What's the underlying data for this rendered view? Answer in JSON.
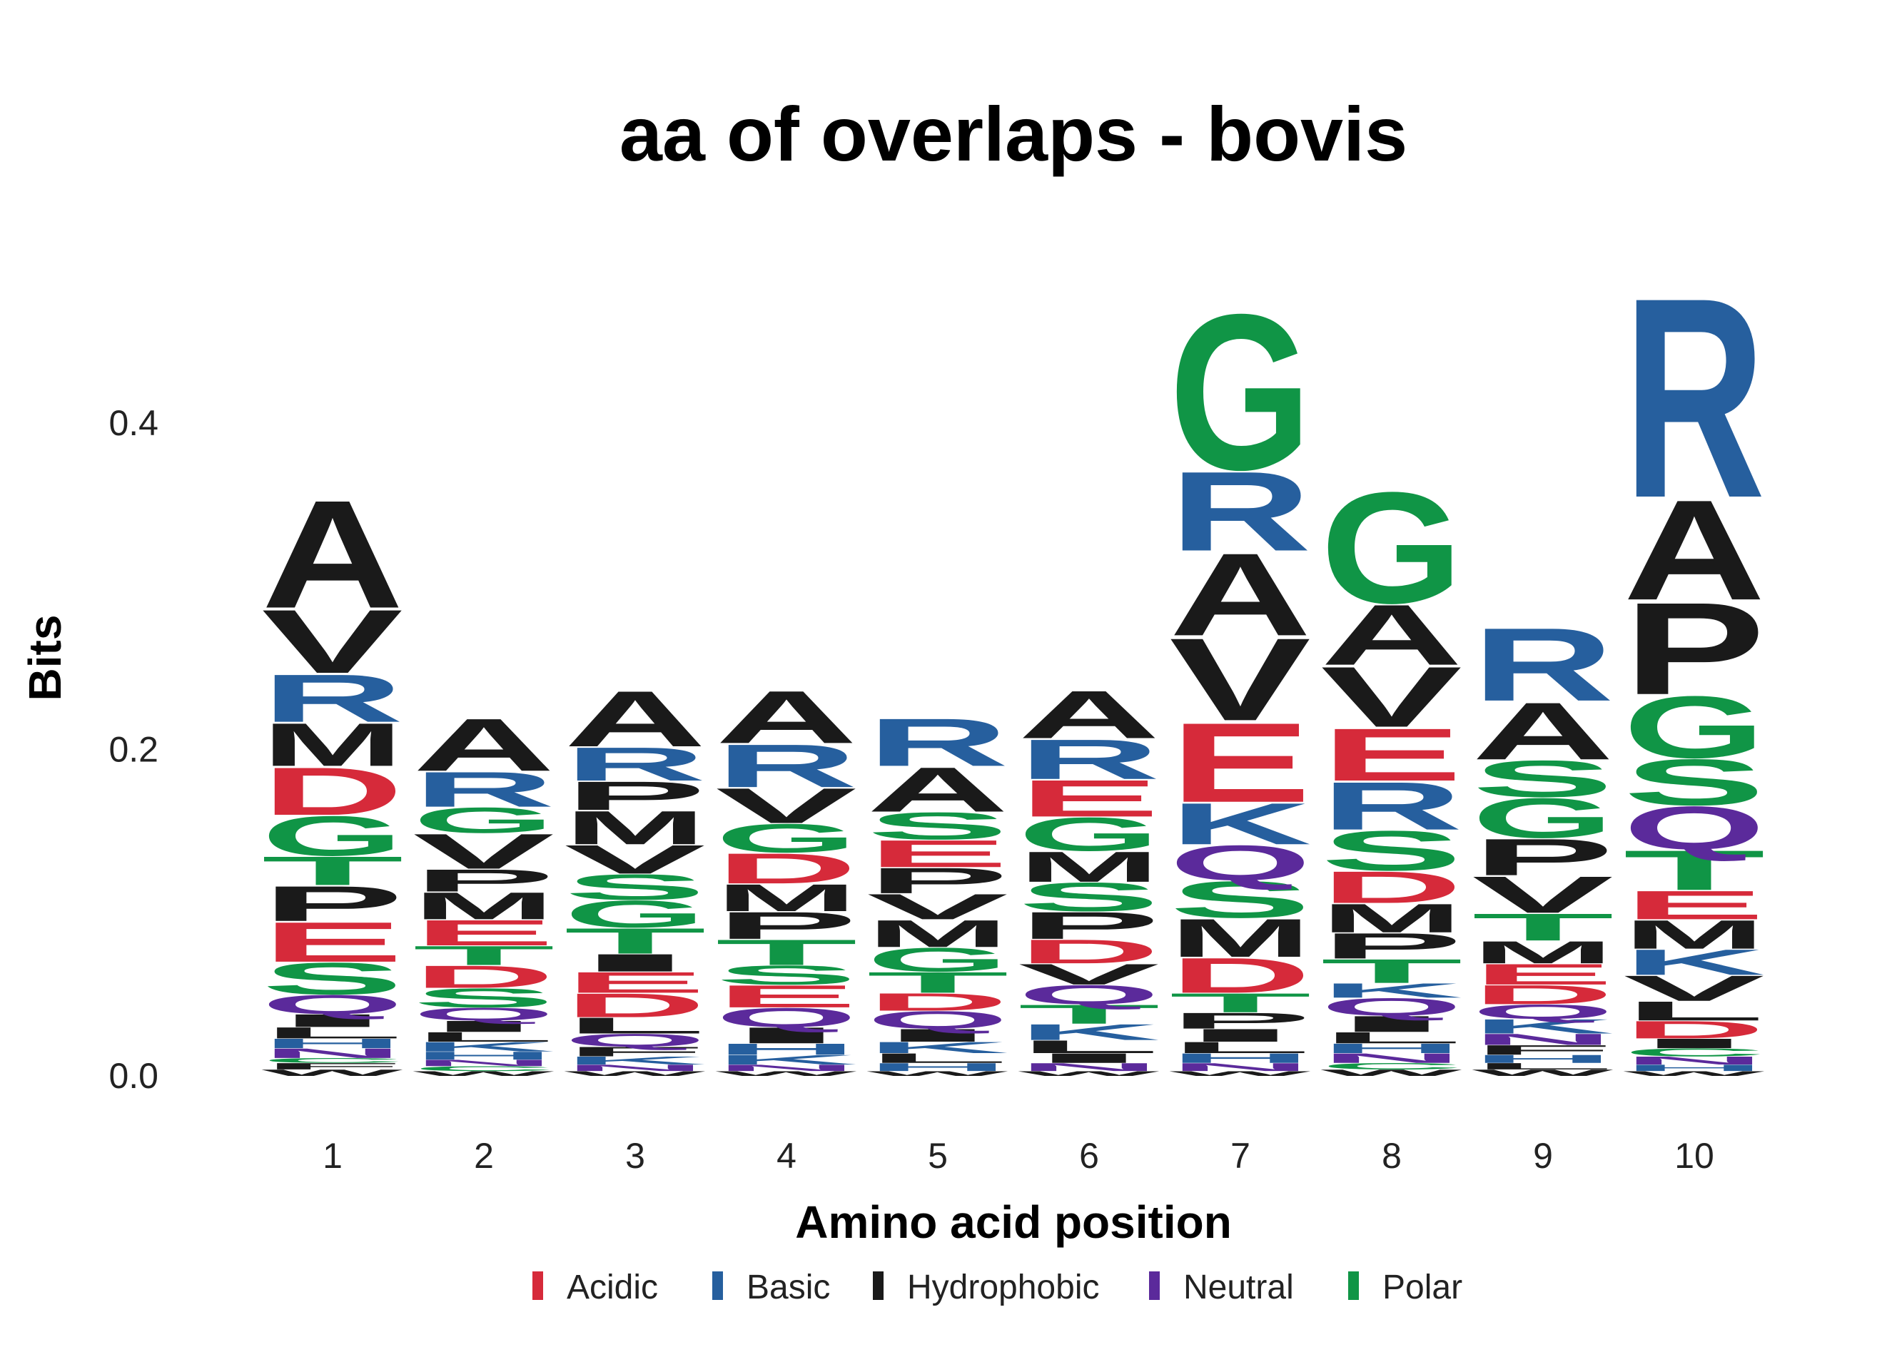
{
  "chart_data": {
    "type": "sequence-logo",
    "title": "aa of overlaps - bovis",
    "xlabel": "Amino acid position",
    "ylabel": "Bits",
    "ylim": [
      0,
      0.55
    ],
    "yticks": [
      "0.0",
      "0.2",
      "0.4"
    ],
    "ytick_values": [
      0.0,
      0.2,
      0.4
    ],
    "positions": [
      "1",
      "2",
      "3",
      "4",
      "5",
      "6",
      "7",
      "8",
      "9",
      "10"
    ],
    "colors": {
      "Acidic": "#d62a3a",
      "Basic": "#265f9e",
      "Hydrophobic": "#1a1a1a",
      "Neutral": "#5b2a9b",
      "Polar": "#109546"
    },
    "legend": {
      "position": "bottom",
      "entries": [
        "Acidic",
        "Basic",
        "Hydrophobic",
        "Neutral",
        "Polar"
      ]
    },
    "residue_class": {
      "D": "Acidic",
      "E": "Acidic",
      "R": "Basic",
      "K": "Basic",
      "H": "Basic",
      "A": "Hydrophobic",
      "V": "Hydrophobic",
      "M": "Hydrophobic",
      "P": "Hydrophobic",
      "L": "Hydrophobic",
      "I": "Hydrophobic",
      "F": "Hydrophobic",
      "W": "Hydrophobic",
      "Q": "Neutral",
      "N": "Neutral",
      "G": "Polar",
      "S": "Polar",
      "T": "Polar",
      "Y": "Polar",
      "C": "Polar"
    },
    "columns": [
      {
        "position": "1",
        "stack": [
          [
            "W",
            0.004
          ],
          [
            "F",
            0.004
          ],
          [
            "C",
            0.003
          ],
          [
            "N",
            0.006
          ],
          [
            "H",
            0.006
          ],
          [
            "L",
            0.007
          ],
          [
            "I",
            0.008
          ],
          [
            "Q",
            0.012
          ],
          [
            "S",
            0.02
          ],
          [
            "E",
            0.025
          ],
          [
            "P",
            0.022
          ],
          [
            "T",
            0.018
          ],
          [
            "G",
            0.025
          ],
          [
            "D",
            0.03
          ],
          [
            "M",
            0.027
          ],
          [
            "R",
            0.03
          ],
          [
            "V",
            0.04
          ],
          [
            "A",
            0.068
          ]
        ]
      },
      {
        "position": "2",
        "stack": [
          [
            "W",
            0.003
          ],
          [
            "C",
            0.003
          ],
          [
            "N",
            0.004
          ],
          [
            "H",
            0.005
          ],
          [
            "K",
            0.006
          ],
          [
            "L",
            0.006
          ],
          [
            "I",
            0.007
          ],
          [
            "Q",
            0.008
          ],
          [
            "S",
            0.012
          ],
          [
            "D",
            0.014
          ],
          [
            "T",
            0.012
          ],
          [
            "E",
            0.016
          ],
          [
            "M",
            0.017
          ],
          [
            "P",
            0.014
          ],
          [
            "V",
            0.022
          ],
          [
            "G",
            0.016
          ],
          [
            "R",
            0.022
          ],
          [
            "A",
            0.033
          ]
        ]
      },
      {
        "position": "3",
        "stack": [
          [
            "W",
            0.003
          ],
          [
            "N",
            0.004
          ],
          [
            "K",
            0.005
          ],
          [
            "F",
            0.006
          ],
          [
            "Q",
            0.008
          ],
          [
            "L",
            0.01
          ],
          [
            "D",
            0.015
          ],
          [
            "E",
            0.013
          ],
          [
            "I",
            0.011
          ],
          [
            "T",
            0.016
          ],
          [
            "G",
            0.017
          ],
          [
            "S",
            0.016
          ],
          [
            "V",
            0.018
          ],
          [
            "M",
            0.021
          ],
          [
            "P",
            0.018
          ],
          [
            "R",
            0.021
          ],
          [
            "A",
            0.035
          ]
        ]
      },
      {
        "position": "4",
        "stack": [
          [
            "W",
            0.003
          ],
          [
            "N",
            0.004
          ],
          [
            "K",
            0.006
          ],
          [
            "H",
            0.007
          ],
          [
            "I",
            0.01
          ],
          [
            "Q",
            0.012
          ],
          [
            "E",
            0.014
          ],
          [
            "S",
            0.012
          ],
          [
            "T",
            0.016
          ],
          [
            "P",
            0.017
          ],
          [
            "M",
            0.017
          ],
          [
            "D",
            0.019
          ],
          [
            "G",
            0.018
          ],
          [
            "V",
            0.022
          ],
          [
            "R",
            0.027
          ],
          [
            "A",
            0.033
          ]
        ]
      },
      {
        "position": "5",
        "stack": [
          [
            "W",
            0.003
          ],
          [
            "H",
            0.005
          ],
          [
            "L",
            0.006
          ],
          [
            "K",
            0.007
          ],
          [
            "I",
            0.008
          ],
          [
            "Q",
            0.011
          ],
          [
            "D",
            0.011
          ],
          [
            "T",
            0.013
          ],
          [
            "G",
            0.015
          ],
          [
            "M",
            0.017
          ],
          [
            "V",
            0.016
          ],
          [
            "P",
            0.016
          ],
          [
            "E",
            0.017
          ],
          [
            "S",
            0.017
          ],
          [
            "A",
            0.028
          ],
          [
            "R",
            0.03
          ]
        ]
      },
      {
        "position": "6",
        "stack": [
          [
            "W",
            0.003
          ],
          [
            "N",
            0.005
          ],
          [
            "I",
            0.006
          ],
          [
            "L",
            0.008
          ],
          [
            "K",
            0.01
          ],
          [
            "T",
            0.012
          ],
          [
            "Q",
            0.012
          ],
          [
            "V",
            0.013
          ],
          [
            "D",
            0.015
          ],
          [
            "P",
            0.017
          ],
          [
            "S",
            0.018
          ],
          [
            "M",
            0.019
          ],
          [
            "G",
            0.021
          ],
          [
            "E",
            0.023
          ],
          [
            "R",
            0.025
          ],
          [
            "A",
            0.03
          ]
        ]
      },
      {
        "position": "7",
        "stack": [
          [
            "W",
            0.003
          ],
          [
            "N",
            0.005
          ],
          [
            "H",
            0.006
          ],
          [
            "L",
            0.007
          ],
          [
            "I",
            0.008
          ],
          [
            "P",
            0.01
          ],
          [
            "T",
            0.012
          ],
          [
            "D",
            0.022
          ],
          [
            "M",
            0.024
          ],
          [
            "S",
            0.023
          ],
          [
            "Q",
            0.022
          ],
          [
            "K",
            0.026
          ],
          [
            "E",
            0.05
          ],
          [
            "V",
            0.052
          ],
          [
            "A",
            0.052
          ],
          [
            "R",
            0.05
          ],
          [
            "G",
            0.098
          ]
        ]
      },
      {
        "position": "8",
        "stack": [
          [
            "W",
            0.004
          ],
          [
            "C",
            0.004
          ],
          [
            "N",
            0.006
          ],
          [
            "H",
            0.006
          ],
          [
            "L",
            0.007
          ],
          [
            "I",
            0.01
          ],
          [
            "Q",
            0.011
          ],
          [
            "K",
            0.009
          ],
          [
            "T",
            0.015
          ],
          [
            "P",
            0.016
          ],
          [
            "M",
            0.018
          ],
          [
            "D",
            0.02
          ],
          [
            "S",
            0.025
          ],
          [
            "R",
            0.03
          ],
          [
            "E",
            0.033
          ],
          [
            "V",
            0.038
          ],
          [
            "A",
            0.038
          ],
          [
            "G",
            0.07
          ]
        ]
      },
      {
        "position": "9",
        "stack": [
          [
            "W",
            0.004
          ],
          [
            "L",
            0.004
          ],
          [
            "H",
            0.005
          ],
          [
            "F",
            0.006
          ],
          [
            "N",
            0.007
          ],
          [
            "K",
            0.009
          ],
          [
            "Q",
            0.009
          ],
          [
            "D",
            0.012
          ],
          [
            "E",
            0.013
          ],
          [
            "M",
            0.014
          ],
          [
            "T",
            0.017
          ],
          [
            "V",
            0.023
          ],
          [
            "P",
            0.023
          ],
          [
            "G",
            0.025
          ],
          [
            "S",
            0.023
          ],
          [
            "A",
            0.036
          ],
          [
            "R",
            0.046
          ]
        ]
      },
      {
        "position": "10",
        "stack": [
          [
            "W",
            0.003
          ],
          [
            "H",
            0.004
          ],
          [
            "N",
            0.005
          ],
          [
            "C",
            0.005
          ],
          [
            "I",
            0.006
          ],
          [
            "D",
            0.011
          ],
          [
            "L",
            0.012
          ],
          [
            "V",
            0.016
          ],
          [
            "K",
            0.016
          ],
          [
            "M",
            0.018
          ],
          [
            "E",
            0.018
          ],
          [
            "T",
            0.025
          ],
          [
            "Q",
            0.027
          ],
          [
            "S",
            0.029
          ],
          [
            "G",
            0.039
          ],
          [
            "P",
            0.058
          ],
          [
            "A",
            0.063
          ],
          [
            "R",
            0.126
          ]
        ]
      }
    ]
  }
}
